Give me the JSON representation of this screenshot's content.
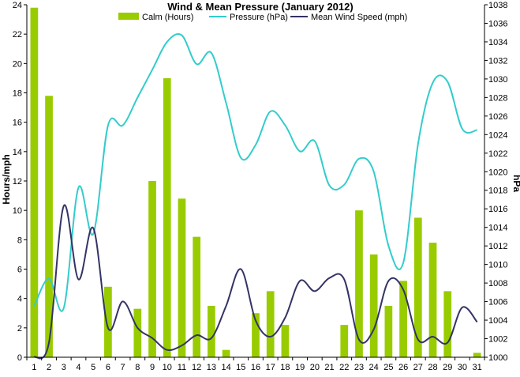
{
  "chart_data": {
    "type": "bar",
    "title": "Wind & Mean Pressure (January 2012)",
    "ylabel": "Hours/mph",
    "y2label": "hPa",
    "xlabel": "",
    "categories": [
      "1",
      "2",
      "3",
      "4",
      "5",
      "6",
      "7",
      "8",
      "9",
      "10",
      "11",
      "12",
      "13",
      "14",
      "15",
      "16",
      "17",
      "18",
      "19",
      "20",
      "21",
      "22",
      "23",
      "24",
      "25",
      "26",
      "27",
      "28",
      "29",
      "30",
      "31"
    ],
    "ylim": [
      0,
      24
    ],
    "yticks": [
      0,
      2,
      4,
      6,
      8,
      10,
      12,
      14,
      16,
      18,
      20,
      22,
      24
    ],
    "y2lim": [
      1000,
      1038
    ],
    "y2ticks": [
      1000,
      1002,
      1004,
      1006,
      1008,
      1010,
      1012,
      1014,
      1016,
      1018,
      1020,
      1022,
      1024,
      1026,
      1028,
      1030,
      1032,
      1034,
      1036,
      1038
    ],
    "legend_position": "top",
    "grid": false,
    "series": [
      {
        "name": "Calm (Hours)",
        "type": "bar",
        "axis": "left",
        "color": "#99cc00",
        "values": [
          23.8,
          17.8,
          0,
          0,
          0,
          4.8,
          0,
          3.3,
          12.0,
          19.0,
          10.8,
          8.2,
          3.5,
          0.5,
          0,
          3.0,
          4.5,
          2.2,
          0,
          0,
          0,
          2.2,
          10.0,
          7.0,
          3.5,
          5.2,
          9.5,
          7.8,
          4.5,
          0,
          0.3
        ]
      },
      {
        "name": "Pressure (hPa)",
        "type": "line",
        "axis": "right",
        "color": "#33cccc",
        "values": [
          1005.5,
          1008.5,
          1005.3,
          1018.3,
          1013.3,
          1025.0,
          1025.0,
          1028.0,
          1031.0,
          1034.0,
          1034.7,
          1031.6,
          1032.8,
          1027.4,
          1021.5,
          1022.9,
          1026.5,
          1025.0,
          1022.2,
          1023.3,
          1018.5,
          1018.6,
          1021.4,
          1020.0,
          1012.0,
          1010.2,
          1023.0,
          1029.6,
          1029.7,
          1024.6,
          1024.5
        ]
      },
      {
        "name": "Mean Wind Speed (mph)",
        "type": "line",
        "axis": "left",
        "color": "#333366",
        "values": [
          0,
          1.0,
          10.3,
          5.3,
          8.8,
          2.0,
          3.8,
          2.0,
          1.3,
          0.5,
          0.8,
          1.5,
          1.3,
          3.5,
          6.0,
          2.5,
          1.4,
          2.7,
          5.2,
          4.5,
          5.4,
          5.3,
          1.2,
          1.9,
          5.2,
          4.6,
          1.2,
          1.4,
          1.0,
          3.4,
          2.4
        ]
      }
    ]
  }
}
